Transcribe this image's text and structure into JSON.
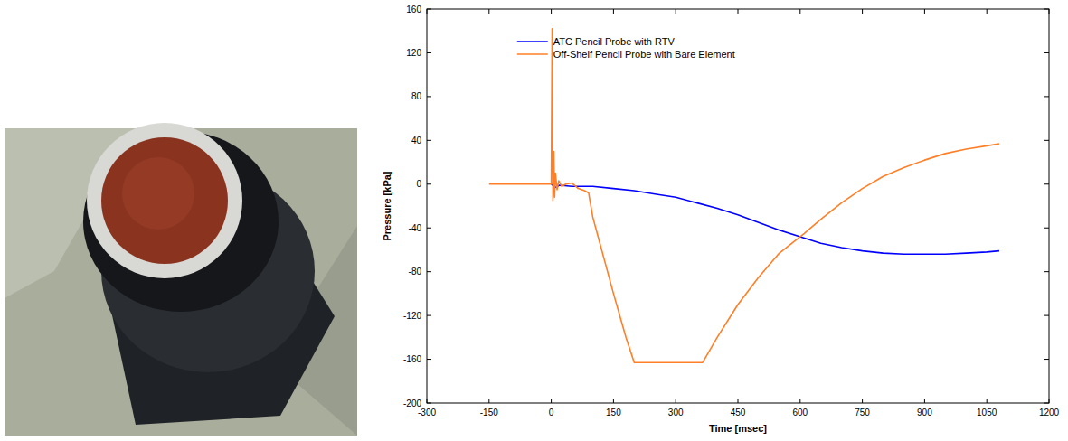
{
  "chart_data": {
    "type": "line",
    "x_label": "Time [msec]",
    "y_label": "Pressure [kPa]",
    "xlim": [
      -300,
      1200
    ],
    "xticks": [
      -300,
      -150,
      0,
      150,
      300,
      450,
      600,
      750,
      900,
      1050,
      1200
    ],
    "ylim": [
      -200,
      160
    ],
    "yticks": [
      -200,
      -160,
      -120,
      -80,
      -40,
      0,
      40,
      80,
      120,
      160
    ],
    "grid": false,
    "legend": "upper-right",
    "series": [
      {
        "name": "ATC Pencil Probe with RTV",
        "color": "#0000ff",
        "x": [
          0,
          10,
          20,
          50,
          100,
          150,
          200,
          250,
          300,
          350,
          400,
          450,
          500,
          550,
          600,
          650,
          700,
          750,
          800,
          850,
          900,
          950,
          1000,
          1050,
          1080
        ],
        "values": [
          0,
          -3,
          -1,
          -2,
          -2,
          -4,
          -6,
          -9,
          -12,
          -17,
          -22,
          -28,
          -35,
          -42,
          -48,
          -54,
          -58,
          -61,
          -63,
          -64,
          -64,
          -64,
          -63,
          -62,
          -61
        ]
      },
      {
        "name": "Off-Shelf Pencil Probe with Bare Element",
        "color": "#ff7f27",
        "x": [
          -150,
          -100,
          -50,
          0,
          2,
          4,
          6,
          8,
          10,
          14,
          18,
          25,
          35,
          50,
          65,
          80,
          90,
          100,
          150,
          180,
          200,
          250,
          300,
          365,
          400,
          450,
          500,
          550,
          610,
          650,
          700,
          750,
          800,
          850,
          900,
          950,
          1000,
          1050,
          1080
        ],
        "values": [
          0,
          0,
          0,
          0,
          142,
          -15,
          30,
          -12,
          10,
          -5,
          3,
          -2,
          0,
          1,
          -4,
          -6,
          -8,
          -30,
          -100,
          -140,
          -163,
          -163,
          -163,
          -163,
          -140,
          -110,
          -85,
          -63,
          -45,
          -32,
          -17,
          -4,
          7,
          15,
          22,
          28,
          32,
          35,
          37
        ]
      }
    ]
  }
}
